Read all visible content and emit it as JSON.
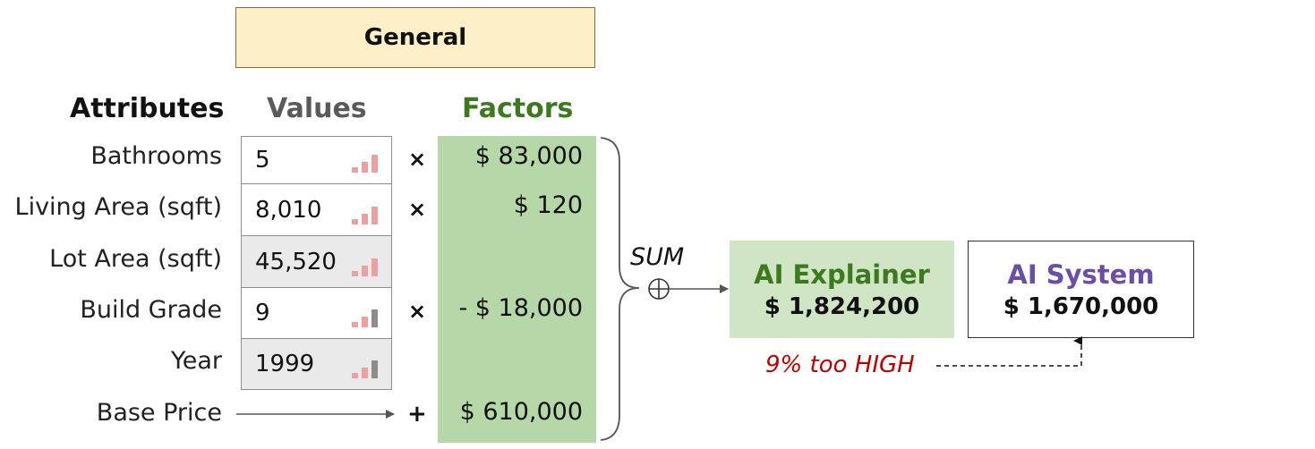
{
  "panel_title": "General",
  "headers": {
    "attributes": "Attributes",
    "values": "Values",
    "factors": "Factors"
  },
  "rows": [
    {
      "attribute": "Bathrooms",
      "value": "5",
      "operator": "×",
      "factor": "$ 83,000",
      "cell": "white",
      "bar_level": 3,
      "bar_color": "pink"
    },
    {
      "attribute": "Living Area (sqft)",
      "value": "8,010",
      "operator": "×",
      "factor": "$ 120",
      "cell": "white",
      "bar_level": 3,
      "bar_color": "pink"
    },
    {
      "attribute": "Lot Area (sqft)",
      "value": "45,520",
      "operator": "",
      "factor": "",
      "cell": "grey",
      "bar_level": 3,
      "bar_color": "pink"
    },
    {
      "attribute": "Build Grade",
      "value": "9",
      "operator": "×",
      "factor": "- $ 18,000",
      "cell": "white",
      "bar_level": 3,
      "bar_color": "pink-grey"
    },
    {
      "attribute": "Year",
      "value": "1999",
      "operator": "",
      "factor": "",
      "cell": "grey",
      "bar_level": 3,
      "bar_color": "pink-grey"
    }
  ],
  "base_price": {
    "label": "Base Price",
    "operator": "+",
    "factor": "$ 610,000"
  },
  "sum_label": "SUM",
  "explainer": {
    "title": "AI Explainer",
    "value": "$ 1,824,200"
  },
  "system": {
    "title": "AI System",
    "value": "$ 1,670,000"
  },
  "comparison": "9% too HIGH",
  "colors": {
    "general_fill": "#fdf0c8",
    "factors_fill": "#b6d7a8",
    "explainer_fill": "#cfe5c4",
    "explainer_title": "#3d7a1f",
    "system_title": "#6a4fa8",
    "too_high": "#c00000",
    "bar_pink": "#eea0a0",
    "bar_grey": "#8d8d8d"
  }
}
